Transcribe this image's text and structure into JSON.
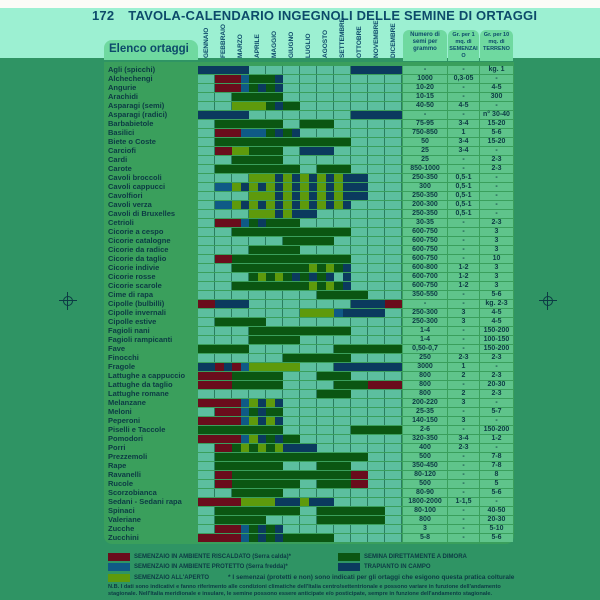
{
  "title": {
    "page": "172",
    "text": "TAVOLA-CALENDARIO INGEGNOLI DELLE SEMINE DI ORTAGGI"
  },
  "list_header": "Elenco ortaggi",
  "months": [
    "GENNAIO",
    "FEBBRAIO",
    "MARZO",
    "APRILE",
    "MAGGIO",
    "GIUGNO",
    "LUGLIO",
    "AGOSTO",
    "SETTEMBRE",
    "OTTOBRE",
    "NOVEMBRE",
    "DICEMBRE"
  ],
  "columns": {
    "seeds": "Numero di semi per grammo",
    "g1": "Gr. per 1 mq. di SEMENZAIO",
    "g10": "Gr. per 10 mq. di TERRENO"
  },
  "colors": {
    "R": "#6a0d1c",
    "B": "#0f5a86",
    "L": "#5e9a0c",
    "G": "#0b5612",
    "N": "#0b3a5e"
  },
  "legend": [
    {
      "code": "R",
      "label": "SEMENZAIO IN AMBIENTE RISCALDATO (Serra calda)*"
    },
    {
      "code": "B",
      "label": "SEMENZAIO IN AMBIENTE PROTETTO (Serra fredda)*"
    },
    {
      "code": "L",
      "label": "SEMENZAIO ALL'APERTO"
    },
    {
      "code": "G",
      "label": "SEMINA DIRETTAMENTE A DIMORA"
    },
    {
      "code": "N",
      "label": "TRAPIANTO IN CAMPO"
    }
  ],
  "footnote": "* I semenzai (protetti e non) sono indicati per gli ortaggi che esigono questa pratica colturale",
  "notes": [
    "N.B. I dati sono indicativi e fanno riferimento alle condizioni climatiche dell'Italia centro/settentrionale e possono variare in funzione dell'andamento",
    "stagionale. Nell'Italia meridionale e insulare, le semine possono essere anticipate e/o posticipate, sempre in funzione dell'andamento stagionale."
  ],
  "rows": [
    {
      "name": "Agli (spicchi)",
      "p": "NNNNNN............NNNNNN",
      "seeds": "-",
      "g1": "-",
      "g10": "kg. 1"
    },
    {
      "name": "Alchechengi",
      "p": "..RRRBGGGN..............",
      "seeds": "1000",
      "g1": "0,3-05",
      "g10": "-"
    },
    {
      "name": "Angurie",
      "p": "..RRRBGNGN..............",
      "seeds": "10-20",
      "g1": "-",
      "g10": "4-5"
    },
    {
      "name": "Arachidi",
      "p": "....GGGGGG..............",
      "seeds": "10-15",
      "g1": "-",
      "g10": "300"
    },
    {
      "name": "Asparagi (semi)",
      "p": "....LLLLGNGG............",
      "seeds": "40-50",
      "g1": "4-5",
      "g10": "-"
    },
    {
      "name": "Asparagi (radici)",
      "p": "NNNNNN............NNNNNN",
      "seeds": "-",
      "g1": "-",
      "g10": "n° 30-40"
    },
    {
      "name": "Barbabietole",
      "p": "..GGGGGGGG..GGGG........",
      "seeds": "75-95",
      "g1": "3-4",
      "g10": "15-20"
    },
    {
      "name": "Basilici",
      "p": "..RRRBBBGNGN............",
      "seeds": "750-850",
      "g1": "1",
      "g10": "5-6"
    },
    {
      "name": "Biete o Coste",
      "p": "..GGGGGGGGGGGGGGGG......",
      "seeds": "50",
      "g1": "3-4",
      "g10": "15-20"
    },
    {
      "name": "Carciofi",
      "p": "..RRLLGGGG..NNNN........",
      "seeds": "25",
      "g1": "3-4",
      "g10": "-"
    },
    {
      "name": "Cardi",
      "p": "....GGGGGG..............",
      "seeds": "25",
      "g1": "-",
      "g10": "2-3"
    },
    {
      "name": "Carote",
      "p": "..GGGGGGGGGG..GGGG......",
      "seeds": "850-1000",
      "g1": "-",
      "g10": "2-3"
    },
    {
      "name": "Cavoli broccoli",
      "p": "......LLLNLNLNLNLNNN....",
      "seeds": "250-350",
      "g1": "0,5-1",
      "g10": "-"
    },
    {
      "name": "Cavoli cappucci",
      "p": "..BBLNLNLNLNLNLNLNNN....",
      "seeds": "300",
      "g1": "0,5-1",
      "g10": "-"
    },
    {
      "name": "Cavolfiori",
      "p": "......LLLNLNLNLNLNNN....",
      "seeds": "250-350",
      "g1": "0,5-1",
      "g10": "-"
    },
    {
      "name": "Cavoli verza",
      "p": "..BBLNLNLNLNLNLNLN......",
      "seeds": "200-300",
      "g1": "0,5-1",
      "g10": "-"
    },
    {
      "name": "Cavoli di Bruxelles",
      "p": "......LLLNLNNN..........",
      "seeds": "250-350",
      "g1": "0,5-1",
      "g10": "-"
    },
    {
      "name": "Cetrioli",
      "p": "..RRRBGNGGGG............",
      "seeds": "30-35",
      "g1": "-",
      "g10": "2-3"
    },
    {
      "name": "Cicorie a cespo",
      "p": "....GGGGGGGGGGGGGG......",
      "seeds": "600-750",
      "g1": "-",
      "g10": "3"
    },
    {
      "name": "Cicorie catalogne",
      "p": "..........GGGGGG........",
      "seeds": "600-750",
      "g1": "-",
      "g10": "3"
    },
    {
      "name": "Cicorie da radice",
      "p": "......GGGGGG............",
      "seeds": "600-750",
      "g1": "-",
      "g10": "3"
    },
    {
      "name": "Cicorie da taglio",
      "p": "..RRGGGGGGGGGGGGGG......",
      "seeds": "600-750",
      "g1": "-",
      "g10": "10"
    },
    {
      "name": "Cicorie indivie",
      "p": "....GGGGGGGGGLGLGN......",
      "seeds": "600-800",
      "g1": "1-2",
      "g10": "3"
    },
    {
      "name": "Cicorie rosse",
      "p": "......GLGLGNGNGN.N......",
      "seeds": "600-700",
      "g1": "1-2",
      "g10": "3"
    },
    {
      "name": "Cicorie scarole",
      "p": "....GGGGGGGGGLGLGN......",
      "seeds": "600-750",
      "g1": "1-2",
      "g10": "3"
    },
    {
      "name": "Cime di rapa",
      "p": "..............GGGGGG....",
      "seeds": "350-550",
      "g1": "-",
      "g10": "5-6"
    },
    {
      "name": "Cipolle (bulbilli)",
      "p": "RRNNNN............NNNNRR",
      "seeds": "-",
      "g1": "-",
      "g10": "kg. 2-3"
    },
    {
      "name": "Cipolle invernali",
      "p": "............LLLLBNNNNN..",
      "seeds": "250-300",
      "g1": "3",
      "g10": "4-5"
    },
    {
      "name": "Cipolle estive",
      "p": "..GGGGGG................",
      "seeds": "250-300",
      "g1": "3",
      "g10": "4-5"
    },
    {
      "name": "Fagioli nani",
      "p": "......GGGGGGGGGGGG......",
      "seeds": "1-4",
      "g1": "-",
      "g10": "150-200"
    },
    {
      "name": "Fagioli rampicanti",
      "p": "......GGGGGG............",
      "seeds": "1-4",
      "g1": "-",
      "g10": "100-150"
    },
    {
      "name": "Fave",
      "p": "GGGGGG..........GGGGGGGG",
      "seeds": "0,50-0,7",
      "g1": "-",
      "g10": "150-200"
    },
    {
      "name": "Finocchi",
      "p": "..........GGGGGGGG......",
      "seeds": "250",
      "g1": "2-3",
      "g10": "2-3"
    },
    {
      "name": "Fragole",
      "p": "NNRNRBLLLLLL....NNNNNNNN",
      "seeds": "3000",
      "g1": "1",
      "g10": "-"
    },
    {
      "name": "Lattughe a cappuccio",
      "p": "RRRRGGGGGG....GGGG......",
      "seeds": "800",
      "g1": "2",
      "g10": "2-3"
    },
    {
      "name": "Lattughe da taglio",
      "p": "RRRRGGGGGG......GGGGRRRR",
      "seeds": "800",
      "g1": "-",
      "g10": "20-30"
    },
    {
      "name": "Lattughe romane",
      "p": "..............GGGG......",
      "seeds": "800",
      "g1": "2",
      "g10": "2-3"
    },
    {
      "name": "Melanzane",
      "p": "RRRRRBLNLN..............",
      "seeds": "200-220",
      "g1": "3",
      "g10": "-"
    },
    {
      "name": "Meloni",
      "p": "..RRRBGNGG..............",
      "seeds": "25-35",
      "g1": "-",
      "g10": "5-7"
    },
    {
      "name": "Peperoni",
      "p": "RRRRRBLNLN..............",
      "seeds": "140-150",
      "g1": "3",
      "g10": "-"
    },
    {
      "name": "Piselli e Taccole",
      "p": "GGGGGGGGGG........GGGGGG",
      "seeds": "2-6",
      "g1": "-",
      "g10": "150-200"
    },
    {
      "name": "Pomodori",
      "p": "RRRRRBLNGNGG............",
      "seeds": "320-350",
      "g1": "3-4",
      "g10": "1-2"
    },
    {
      "name": "Porri",
      "p": "..RRGLGLGLNNNN..........",
      "seeds": "400",
      "g1": "2-3",
      "g10": "-"
    },
    {
      "name": "Prezzemoli",
      "p": "..GGGGGGGGGGGGGGGGGG....",
      "seeds": "500",
      "g1": "-",
      "g10": "7-8"
    },
    {
      "name": "Rape",
      "p": "..GGGGGGGG....GGGG......",
      "seeds": "350-450",
      "g1": "-",
      "g10": "7-8"
    },
    {
      "name": "Ravanelli",
      "p": "..RRGGGGGGGGGGGGGGRR....",
      "seeds": "80-120",
      "g1": "-",
      "g10": "8"
    },
    {
      "name": "Rucole",
      "p": "..RRGGGGGGGG..GGGGRR....",
      "seeds": "500",
      "g1": "-",
      "g10": "5"
    },
    {
      "name": "Scorzobianca",
      "p": "....GGGGGG..............",
      "seeds": "80-90",
      "g1": "-",
      "g10": "5-6"
    },
    {
      "name": "Sedani - Sedani rapa",
      "p": "RRRRRLLLLNNNLNNN........",
      "seeds": "1800-2000",
      "g1": "1-1,5",
      "g10": "-"
    },
    {
      "name": "Spinaci",
      "p": "..GGGGGGGGGG..GGGGGGGG..",
      "seeds": "80-100",
      "g1": "-",
      "g10": "40-50"
    },
    {
      "name": "Valeriane",
      "p": "..GGGGGG......GGGGGGGG..",
      "seeds": "800",
      "g1": "-",
      "g10": "20-30"
    },
    {
      "name": "Zucche",
      "p": "..RRRBGNGN..............",
      "seeds": "3",
      "g1": "-",
      "g10": "5-10"
    },
    {
      "name": "Zucchini",
      "p": "RRRRRBGNGNGGGGGG........",
      "seeds": "5-8",
      "g1": "-",
      "g10": "5-6"
    }
  ]
}
